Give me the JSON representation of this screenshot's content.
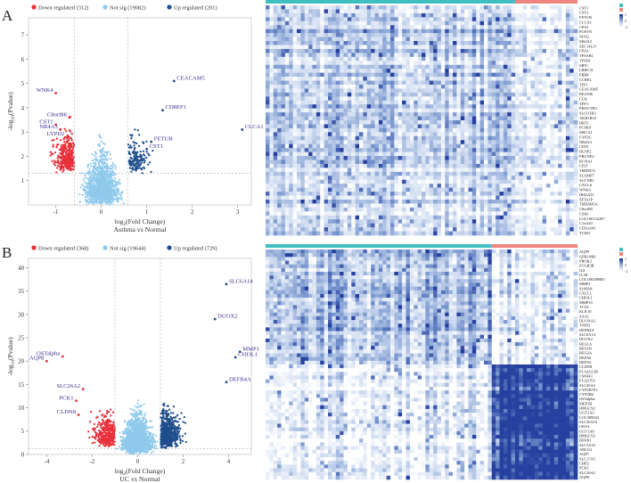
{
  "figure": {
    "panel_labels": [
      "A",
      "B"
    ]
  },
  "chart_data": [
    {
      "type": "scatter",
      "subtype": "volcano",
      "panel": "A",
      "title": "",
      "xlabel": "log2(Fold Change)",
      "xlabel_parts": {
        "base": "log",
        "sub": "2",
        "rest": "(Fold Change)"
      },
      "ylabel": "-log10(Pvalue)",
      "ylabel_parts": {
        "base": "-log",
        "sub": "10",
        "rest": "(Pvalue)"
      },
      "subtitle": "Asthma vs Normal",
      "xlim": [
        -1.6,
        3.3
      ],
      "ylim": [
        0,
        7.7
      ],
      "xticks": [
        -1,
        0,
        1,
        2,
        3
      ],
      "yticks": [
        1,
        2,
        3,
        4,
        5,
        6,
        7
      ],
      "fc_cutoff": 0.585,
      "p_line": 1.3,
      "legend": [
        {
          "label": "Down regulated (312)",
          "color": "#e8303a"
        },
        {
          "label": "Not sig (19082)",
          "color": "#8ec9ec"
        },
        {
          "label": "Up regulated (201)",
          "color": "#1f4e8c"
        }
      ],
      "labeled_genes": [
        {
          "name": "WNK4",
          "x": -1.0,
          "y": 4.6
        },
        {
          "name": "C8orf88",
          "x": -0.7,
          "y": 3.6
        },
        {
          "name": "CST1",
          "x": -1.0,
          "y": 3.3
        },
        {
          "name": "NR4A3",
          "x": -0.9,
          "y": 3.1
        },
        {
          "name": "LYPD2",
          "x": -0.75,
          "y": 2.8
        },
        {
          "name": "CEACAM5",
          "x": 1.6,
          "y": 5.1
        },
        {
          "name": "CD8EF1",
          "x": 1.35,
          "y": 3.9
        },
        {
          "name": "FETUB",
          "x": 1.1,
          "y": 2.6
        },
        {
          "name": "CST1",
          "x": 1.0,
          "y": 2.3
        },
        {
          "name": "CLCA1",
          "x": 3.1,
          "y": 3.1
        }
      ]
    },
    {
      "type": "scatter",
      "subtype": "volcano",
      "panel": "B",
      "title": "",
      "xlabel": "log2(Fold Change)",
      "xlabel_parts": {
        "base": "log",
        "sub": "2",
        "rest": "(Fold Change)"
      },
      "ylabel": "-log10(Pvalue)",
      "ylabel_parts": {
        "base": "-log",
        "sub": "10",
        "rest": "(Pvalue)"
      },
      "subtitle": "UC vs Normal",
      "xlim": [
        -4.8,
        5.0
      ],
      "ylim": [
        0,
        42
      ],
      "xticks": [
        -4,
        -2,
        0,
        2,
        4
      ],
      "yticks": [
        0,
        5,
        10,
        15,
        20,
        25,
        30,
        35,
        40
      ],
      "fc_cutoff": 1.0,
      "p_line": 1.3,
      "legend": [
        {
          "label": "Down regulated (368)",
          "color": "#e8303a"
        },
        {
          "label": "Not sig (19644)",
          "color": "#8ec9ec"
        },
        {
          "label": "Up regulated (729)",
          "color": "#1f4e8c"
        }
      ],
      "labeled_genes": [
        {
          "name": "SLC6A14",
          "x": 3.9,
          "y": 36.5
        },
        {
          "name": "DUOX2",
          "x": 3.4,
          "y": 29.0
        },
        {
          "name": "MMP1",
          "x": 4.5,
          "y": 22.0
        },
        {
          "name": "CHI3L1",
          "x": 4.3,
          "y": 20.8
        },
        {
          "name": "DEFB4A",
          "x": 3.9,
          "y": 15.5
        },
        {
          "name": "OSTalpha",
          "x": -3.3,
          "y": 21.0
        },
        {
          "name": "AQP8",
          "x": -4.0,
          "y": 20.0
        },
        {
          "name": "SLC26A2",
          "x": -2.4,
          "y": 14.0
        },
        {
          "name": "PCK1",
          "x": -2.7,
          "y": 11.5
        },
        {
          "name": "CLDN8",
          "x": -2.6,
          "y": 8.5
        }
      ]
    },
    {
      "type": "heatmap",
      "panel": "A",
      "rows": 58,
      "cols": 80,
      "group_split": 0.8,
      "group_colors": [
        "#3fbfbf",
        "#f0857f"
      ],
      "gene_labels": [
        "CST1",
        "CST2",
        "FETUB",
        "CLCA1",
        "CPA3",
        "POSTN",
        "NOS2",
        "MS4A2",
        "SEC14L3?",
        "CPA3",
        "TPSAB1",
        "TPSD1",
        "SRT1",
        "LRRC31",
        "PRR4",
        "CCBE1",
        "TFF1",
        "CEACAM5",
        "RIGN36",
        "CCK",
        "TFF3",
        "PHACTR3",
        "SLCO1B3",
        "AKR1B10",
        "HRT1",
        "PCSK9",
        "MSCA1",
        "CYP2C",
        "NR4A3",
        "CD55",
        "DUSP2",
        "PRUNE2",
        "KCNA1",
        "CILP",
        "TMEM74",
        "SLAMF7",
        "SUCNR1",
        "CXCL6",
        "WNK4",
        "IRIGAT1",
        "SFTA1P",
        "TMEM45A",
        "C8orf88",
        "CSH1",
        "LOC100132287",
        "C1orf20",
        "CD5orf46",
        "TGM3"
      ],
      "legend_values": [
        "2",
        "0",
        "-2"
      ]
    },
    {
      "type": "heatmap",
      "panel": "B",
      "rows": 62,
      "cols": 80,
      "group_split": 0.72,
      "group_colors": [
        "#3fbfbf",
        "#f0857f"
      ],
      "gene_labels": [
        "AQP9",
        "GPR109B",
        "PROK2",
        "FCGR3B",
        "IL8",
        "IL1B",
        "LOC100288985",
        "MMP3",
        "S100A8",
        "CXCL1",
        "CHI3L1",
        "MMP10",
        "TCN1",
        "KLK10",
        "SAA1",
        "DUOXA2",
        "TNIP3",
        "DEFB4A",
        "SLC6A14",
        "DUOX2",
        "REG1A",
        "REG1B",
        "REG3A",
        "DEFA6",
        "DEFA5",
        "CLDN8",
        "PLA2G12B",
        "CWH43",
        "FLJ22763",
        "SLC26A2",
        "CYP2B7P1",
        "CYP2B6",
        "OSTalpha",
        "MEP1B",
        "HMGCS2",
        "UGT2A3",
        "LOC389023",
        "SLC30A10",
        "GBA3",
        "UGT1A8",
        "HMGCS2",
        "DEFB1",
        "SLC3A10",
        "ABCG2",
        "AQP7",
        "SLC17A5",
        "CHP2",
        "PCK1",
        "SLC26A2",
        "AQP8"
      ],
      "legend_values": [
        "2",
        "0",
        "-2"
      ]
    }
  ]
}
